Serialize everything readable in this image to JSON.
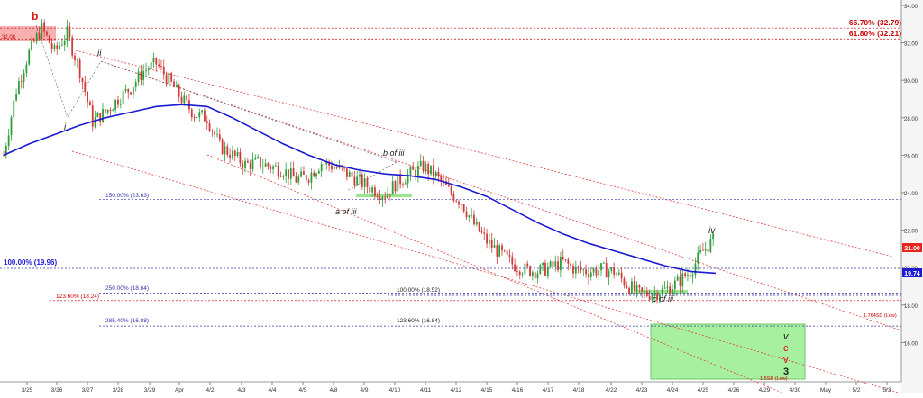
{
  "chart_data": {
    "type": "candlestick",
    "x_ticks": [
      "3/25",
      "3/26",
      "3/27",
      "3/28",
      "3/29",
      "Apr",
      "4/2",
      "4/3",
      "4/4",
      "4/5",
      "4/8",
      "4/9",
      "4/10",
      "4/11",
      "4/12",
      "4/15",
      "4/16",
      "4/17",
      "4/18",
      "4/22",
      "4/23",
      "4/24",
      "4/25",
      "4/26",
      "4/29",
      "4/30",
      "May",
      "5/2",
      "5/3"
    ],
    "y_ticks": [
      "34.00",
      "32.00",
      "30.00",
      "28.00",
      "26.00",
      "24.00",
      "22.00",
      "20.00",
      "18.00",
      "16.00"
    ],
    "ylim": [
      14,
      34
    ],
    "price_path": [
      [
        0,
        26.0
      ],
      [
        1,
        29.5
      ],
      [
        2,
        31.5
      ],
      [
        3,
        32.8
      ],
      [
        4,
        31.5
      ],
      [
        5,
        32.5
      ],
      [
        6,
        30.5
      ],
      [
        7,
        27.8
      ],
      [
        8,
        28.3
      ],
      [
        9,
        29.0
      ],
      [
        10,
        29.6
      ],
      [
        11,
        30.5
      ],
      [
        12,
        30.9
      ],
      [
        13,
        30.0
      ],
      [
        14,
        29.0
      ],
      [
        15,
        28.2
      ],
      [
        16,
        28.0
      ],
      [
        17,
        26.5
      ],
      [
        18,
        26.0
      ],
      [
        19,
        25.5
      ],
      [
        20,
        25.6
      ],
      [
        21,
        25.4
      ],
      [
        22,
        25.2
      ],
      [
        23,
        24.7
      ],
      [
        24,
        24.9
      ],
      [
        25,
        25.6
      ],
      [
        26,
        25.4
      ],
      [
        27,
        25.0
      ],
      [
        28,
        24.6
      ],
      [
        29,
        24.2
      ],
      [
        30,
        23.9
      ],
      [
        31,
        24.6
      ],
      [
        32,
        25.0
      ],
      [
        33,
        25.4
      ],
      [
        34,
        24.9
      ],
      [
        35,
        24.1
      ],
      [
        36,
        23.5
      ],
      [
        37,
        22.3
      ],
      [
        38,
        21.4
      ],
      [
        39,
        20.8
      ],
      [
        40,
        20.2
      ],
      [
        41,
        19.9
      ],
      [
        42,
        19.8
      ],
      [
        43,
        20.0
      ],
      [
        44,
        20.3
      ],
      [
        45,
        19.9
      ],
      [
        46,
        19.8
      ],
      [
        47,
        19.9
      ],
      [
        48,
        19.8
      ],
      [
        49,
        19.1
      ],
      [
        50,
        18.6
      ],
      [
        51,
        18.6
      ],
      [
        52,
        18.8
      ],
      [
        53,
        19.2
      ],
      [
        54,
        19.8
      ],
      [
        55,
        20.9
      ],
      [
        56,
        21.6
      ]
    ],
    "ma_path": [
      [
        0,
        26.0
      ],
      [
        1,
        26.6
      ],
      [
        2,
        27.1
      ],
      [
        3,
        27.6
      ],
      [
        4,
        28.0
      ],
      [
        5,
        28.3
      ],
      [
        6,
        28.6
      ],
      [
        7,
        28.7
      ],
      [
        8,
        28.6
      ],
      [
        9,
        28.0
      ],
      [
        10,
        27.3
      ],
      [
        11,
        26.6
      ],
      [
        12,
        26.0
      ],
      [
        13,
        25.5
      ],
      [
        14,
        25.2
      ],
      [
        15,
        25.0
      ],
      [
        16,
        24.9
      ],
      [
        17,
        24.7
      ],
      [
        18,
        24.3
      ],
      [
        19,
        23.8
      ],
      [
        20,
        23.1
      ],
      [
        21,
        22.4
      ],
      [
        22,
        21.8
      ],
      [
        23,
        21.3
      ],
      [
        24,
        20.9
      ],
      [
        25,
        20.5
      ],
      [
        26,
        20.1
      ],
      [
        27,
        19.8
      ],
      [
        28,
        19.7
      ]
    ],
    "last_price": "21.00",
    "ma_value": "19.74",
    "fib_levels": [
      {
        "label": "66.70% (32.79)",
        "value": 32.79,
        "color": "#cc0000"
      },
      {
        "label": "61.80% (32.21)",
        "value": 32.21,
        "color": "#cc0000"
      },
      {
        "label": "150.00% (23.63)",
        "value": 23.63,
        "color": "#3333aa"
      },
      {
        "label": "100.00% (19.96)",
        "value": 19.96,
        "color": "#3333aa"
      },
      {
        "label": "250.00% (18.64)",
        "value": 18.64,
        "color": "#3333aa"
      },
      {
        "label": "100.00% (18.52)",
        "value": 18.52,
        "color": "#3333aa"
      },
      {
        "label": "123.60% (18.24)",
        "value": 18.24,
        "color": "#cc0000"
      },
      {
        "label": "285.40% (16.88)",
        "value": 16.88,
        "color": "#3333aa"
      },
      {
        "label": "123.60% (16.84)",
        "value": 16.84,
        "color": "#3333aa"
      }
    ],
    "resistance_box_label": "32.08",
    "sd_labels": [
      "1.764SD (Low)",
      "1.5SD (Low)"
    ],
    "wave_labels": {
      "b": "b",
      "ii": "ii",
      "i": "i",
      "b_of_iii": "b of iii",
      "a_of_iii": "a of iii",
      "c_of_iii": "c of iii",
      "iv": "iv",
      "v_black": "v",
      "c_red": "c",
      "v_red": "v",
      "three": "3"
    }
  }
}
